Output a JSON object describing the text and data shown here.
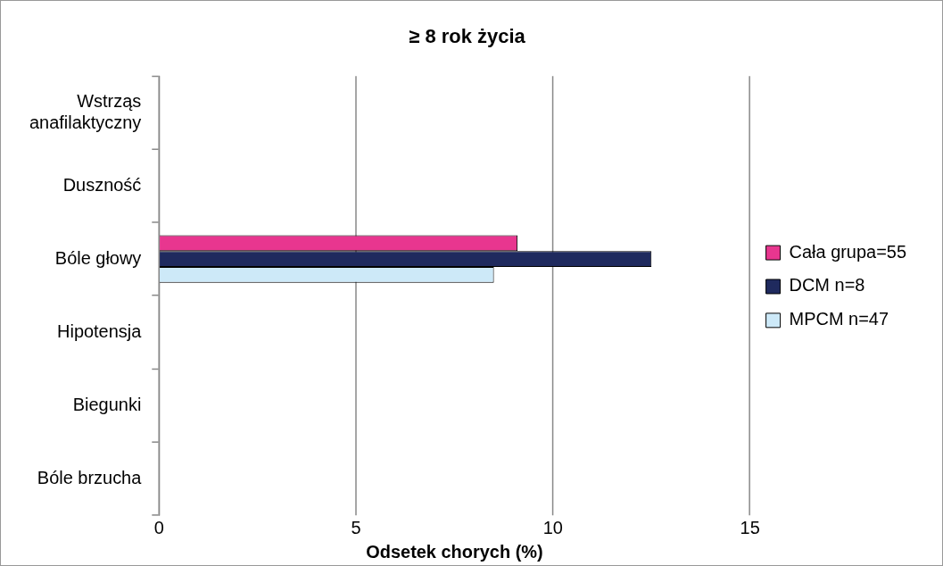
{
  "chart_data": {
    "type": "bar",
    "orientation": "horizontal",
    "title": "≥ 8 rok życia",
    "xlabel": "Odsetek chorych (%)",
    "categories": [
      "Wstrząs anafilaktyczny",
      "Duszność",
      "Bóle głowy",
      "Hipotensja",
      "Biegunki",
      "Bóle brzucha"
    ],
    "series": [
      {
        "name": "Cała grupa=55",
        "color": "#e8368f",
        "values": [
          0,
          0,
          9.1,
          0,
          0,
          0
        ]
      },
      {
        "name": "DCM n=8",
        "color": "#1f2a5e",
        "values": [
          0,
          0,
          12.5,
          0,
          0,
          0
        ]
      },
      {
        "name": "MPCM n=47",
        "color": "#cde9f8",
        "values": [
          0,
          0,
          8.5,
          0,
          0,
          0
        ]
      }
    ],
    "xlim": [
      0,
      15
    ],
    "xticks": [
      0,
      5,
      10,
      15
    ],
    "grid": "x",
    "legend": "right"
  }
}
